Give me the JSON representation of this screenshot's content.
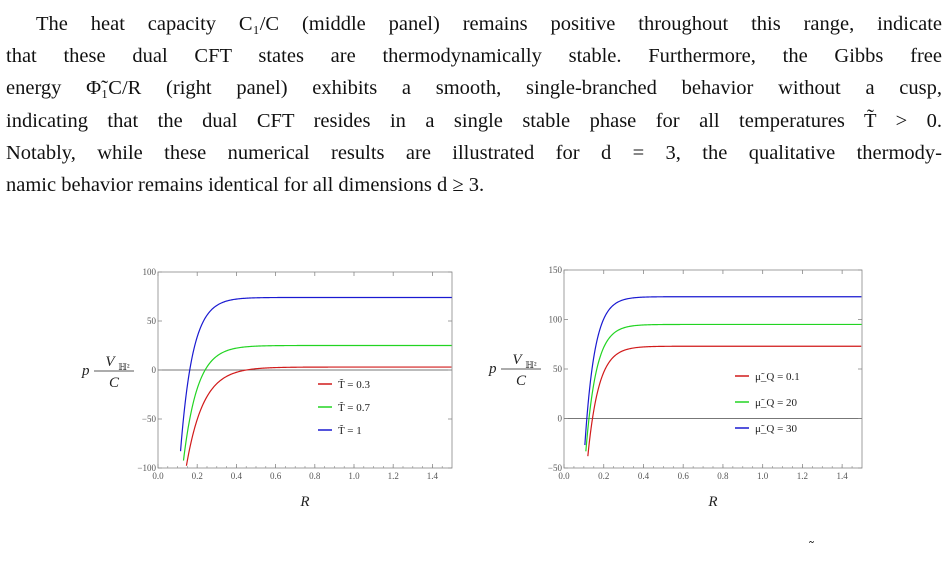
{
  "paragraph": {
    "lines": [
      "The heat capacity C₁/C (middle panel) remains positive throughout this range, indicate",
      "that these dual CFT states are thermodynamically stable.  Furthermore, the Gibbs free",
      "energy Φ̃₁C/R (right panel) exhibits a smooth, single-branched behavior without a cusp,",
      "indicating that the dual CFT resides in a single stable phase for all temperatures T̃ > 0.",
      "Notably, while these numerical results are illustrated for d = 3, the qualitative thermody-",
      "namic behavior remains identical for all dimensions d ≥ 3."
    ]
  },
  "colors": {
    "red": "#d11a1a",
    "green": "#22d422",
    "blue": "#1a1ad1",
    "axis": "#888888"
  },
  "chart_data": [
    {
      "type": "line",
      "xlabel": "R",
      "ylabel": "p V_H² / C",
      "xlim": [
        0,
        1.5
      ],
      "ylim": [
        -100,
        100
      ],
      "xticks": [
        "0.0",
        "0.2",
        "0.4",
        "0.6",
        "0.8",
        "1.0",
        "1.2",
        "1.4"
      ],
      "yticks": [
        "100",
        "50",
        "0",
        "−50",
        "−100"
      ],
      "yticks_values": [
        100,
        50,
        0,
        -50,
        -100
      ],
      "legend_position": "center-right",
      "series": [
        {
          "name": "T̃ = 0.3",
          "color": "red",
          "x0": 0.155,
          "asymptote": 3,
          "rate": 11.5
        },
        {
          "name": "T̃ = 0.7",
          "color": "green",
          "x0": 0.14,
          "asymptote": 25,
          "rate": 14
        },
        {
          "name": "T̃ = 1",
          "color": "blue",
          "x0": 0.125,
          "asymptote": 74,
          "rate": 16
        }
      ]
    },
    {
      "type": "line",
      "xlabel": "R",
      "ylabel": "p V_H² / C",
      "xlim": [
        0,
        1.5
      ],
      "ylim": [
        -50,
        150
      ],
      "xticks": [
        "0.0",
        "0.2",
        "0.4",
        "0.6",
        "0.8",
        "1.0",
        "1.2",
        "1.4"
      ],
      "yticks": [
        "150",
        "100",
        "50",
        "0",
        "−50"
      ],
      "yticks_values": [
        150,
        100,
        50,
        0,
        -50
      ],
      "legend_position": "center-right",
      "series": [
        {
          "name": "μ̃_Q = 0.1",
          "color": "red",
          "x0": 0.13,
          "asymptote": 73,
          "rate": 18
        },
        {
          "name": "μ̃_Q = 20",
          "color": "green",
          "x0": 0.12,
          "asymptote": 95,
          "rate": 19
        },
        {
          "name": "μ̃_Q = 30",
          "color": "blue",
          "x0": 0.115,
          "asymptote": 123,
          "rate": 20
        }
      ]
    }
  ],
  "caption_fragment": "˜"
}
